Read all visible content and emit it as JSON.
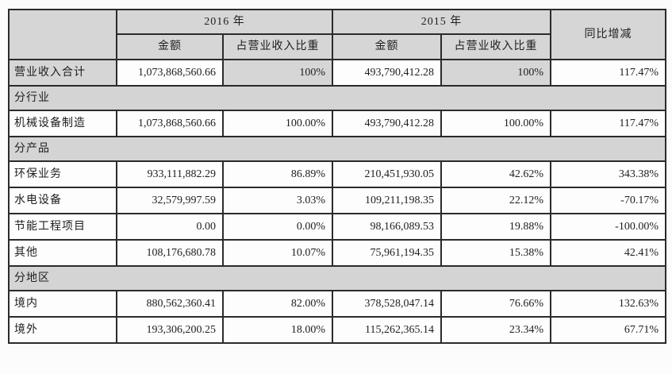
{
  "table": {
    "header": {
      "corner": "",
      "year_2016": "2016 年",
      "year_2015": "2015 年",
      "yoy": "同比增减",
      "amount": "金额",
      "ratio": "占营业收入比重"
    },
    "rows": [
      {
        "type": "data",
        "highlight": true,
        "label": "营业收入合计",
        "a2016": "1,073,868,560.66",
        "r2016": "100%",
        "a2015": "493,790,412.28",
        "r2015": "100%",
        "yoy": "117.47%"
      },
      {
        "type": "section",
        "label": "分行业"
      },
      {
        "type": "data",
        "highlight": false,
        "label": "机械设备制造",
        "a2016": "1,073,868,560.66",
        "r2016": "100.00%",
        "a2015": "493,790,412.28",
        "r2015": "100.00%",
        "yoy": "117.47%"
      },
      {
        "type": "section",
        "label": "分产品"
      },
      {
        "type": "data",
        "highlight": false,
        "label": "环保业务",
        "a2016": "933,111,882.29",
        "r2016": "86.89%",
        "a2015": "210,451,930.05",
        "r2015": "42.62%",
        "yoy": "343.38%"
      },
      {
        "type": "data",
        "highlight": false,
        "label": "水电设备",
        "a2016": "32,579,997.59",
        "r2016": "3.03%",
        "a2015": "109,211,198.35",
        "r2015": "22.12%",
        "yoy": "-70.17%"
      },
      {
        "type": "data",
        "highlight": false,
        "label": "节能工程项目",
        "a2016": "0.00",
        "r2016": "0.00%",
        "a2015": "98,166,089.53",
        "r2015": "19.88%",
        "yoy": "-100.00%"
      },
      {
        "type": "data",
        "highlight": false,
        "label": "其他",
        "a2016": "108,176,680.78",
        "r2016": "10.07%",
        "a2015": "75,961,194.35",
        "r2015": "15.38%",
        "yoy": "42.41%"
      },
      {
        "type": "section",
        "label": "分地区"
      },
      {
        "type": "data",
        "highlight": false,
        "label": "境内",
        "a2016": "880,562,360.41",
        "r2016": "82.00%",
        "a2015": "378,528,047.14",
        "r2015": "76.66%",
        "yoy": "132.63%"
      },
      {
        "type": "data",
        "highlight": false,
        "label": "境外",
        "a2016": "193,306,200.25",
        "r2016": "18.00%",
        "a2015": "115,262,365.14",
        "r2015": "23.34%",
        "yoy": "67.71%"
      }
    ]
  },
  "colors": {
    "header_bg": "#d6d6d6",
    "section_bg": "#d4d4d4",
    "border": "#2b2b2b",
    "text": "#1e1e1e",
    "page_bg": "#fcfcfc"
  }
}
